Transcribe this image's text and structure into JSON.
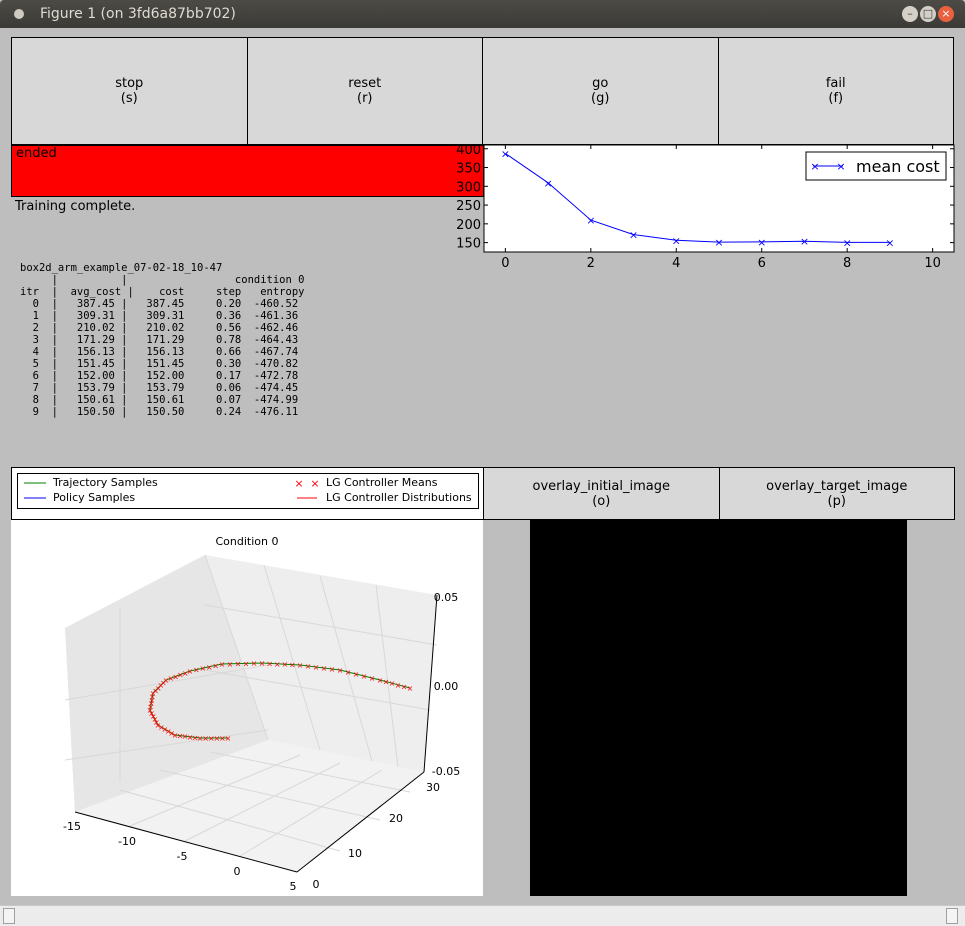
{
  "window": {
    "title": "Figure 1 (on 3fd6a87bb702)"
  },
  "buttons": [
    {
      "label": "stop",
      "key": "(s)"
    },
    {
      "label": "reset",
      "key": "(r)"
    },
    {
      "label": "go",
      "key": "(g)"
    },
    {
      "label": "fail",
      "key": "(f)"
    }
  ],
  "status": {
    "text": "ended",
    "color": "#ff0000"
  },
  "message": "Training complete.",
  "log": {
    "experiment": "box2d_arm_example_07-02-18_10-47",
    "sep_line": "     |          |                 condition 0",
    "header": "itr  |  avg_cost |    cost     step   entropy",
    "rows": [
      "  0  |   387.45 |   387.45     0.20  -460.52",
      "  1  |   309.31 |   309.31     0.36  -461.36",
      "  2  |   210.02 |   210.02     0.56  -462.46",
      "  3  |   171.29 |   171.29     0.78  -464.43",
      "  4  |   156.13 |   156.13     0.66  -467.74",
      "  5  |   151.45 |   151.45     0.30  -470.82",
      "  6  |   152.00 |   152.00     0.17  -472.78",
      "  7  |   153.79 |   153.79     0.06  -474.45",
      "  8  |   150.61 |   150.61     0.07  -474.99",
      "  9  |   150.50 |   150.50     0.24  -476.11"
    ]
  },
  "chart_data": [
    {
      "type": "line",
      "x": [
        0,
        1,
        2,
        3,
        4,
        5,
        6,
        7,
        8,
        9
      ],
      "series": [
        {
          "name": "mean cost",
          "values": [
            387.45,
            309.31,
            210.02,
            171.29,
            156.13,
            151.45,
            152.0,
            153.79,
            150.61,
            150.5
          ],
          "color": "#0000ff",
          "marker": "x"
        }
      ],
      "xlim": [
        -0.5,
        10.5
      ],
      "ylim": [
        125,
        410
      ],
      "xticks": [
        "0",
        "2",
        "4",
        "6",
        "8",
        "10"
      ],
      "yticks": [
        "150",
        "200",
        "250",
        "300",
        "350",
        "400"
      ],
      "legend": "top-right"
    },
    {
      "type": "line3d",
      "title": "Condition 0",
      "xticks": [
        "-15",
        "-10",
        "-5",
        "0",
        "5"
      ],
      "yticks": [
        "0",
        "10",
        "20",
        "30"
      ],
      "zticks": [
        "-0.05",
        "0.00",
        "0.05"
      ],
      "legend_entries": [
        "Trajectory Samples",
        "Policy Samples",
        "LG Controller Means",
        "LG Controller Distributions"
      ],
      "legend_colors": [
        "#008000",
        "#0000ff",
        "#ff0000",
        "#ff0000"
      ]
    }
  ],
  "legend": {
    "trajectory": "Trajectory Samples",
    "policy": "Policy Samples",
    "lg_means": "LG Controller Means",
    "lg_dist": "LG Controller Distributions"
  },
  "overlay_buttons": [
    {
      "label": "overlay_initial_image",
      "key": "(o)"
    },
    {
      "label": "overlay_target_image",
      "key": "(p)"
    }
  ]
}
